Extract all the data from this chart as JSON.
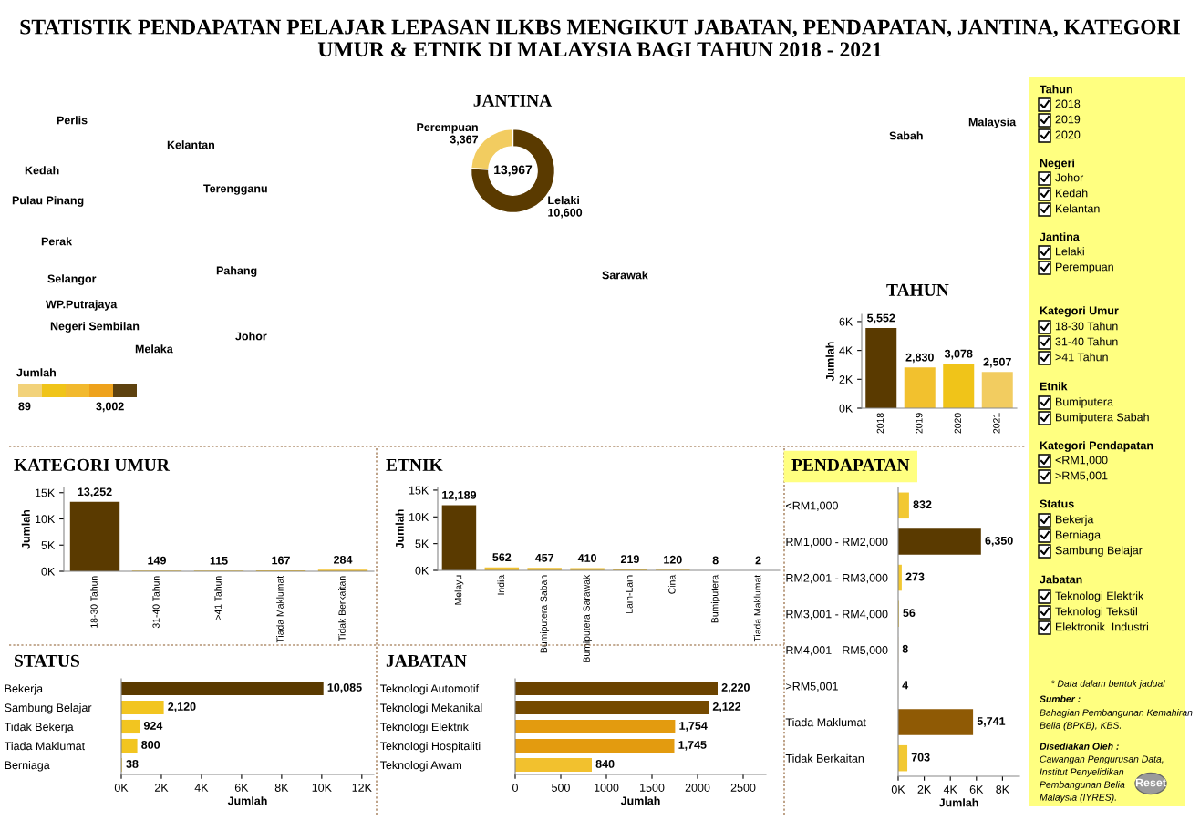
{
  "chart_data": [
    {
      "type": "other",
      "title": "STATISTIK PENDAPATAN PELAJAR LEPASAN ILKBS MENGIKUT JABATAN, PENDAPATAN, JANTINA, KATEGORI UMUR & ETNIK DI MALAYSIA BAGI TAHUN 2018 - 2021",
      "annotations": [
        "Perlis",
        "Kelantan",
        "Kedah",
        "Terengganu",
        "Pulau Pinang",
        "Perak",
        "Pahang",
        "Selangor",
        "WP.Putrajaya",
        "Negeri Sembilan",
        "Johor",
        "Melaka",
        "Sarawak",
        "Sabah",
        "Malaysia",
        "Jumlah",
        "89",
        "3,002"
      ],
      "colors": [
        "#f2d27a",
        "#f0c419",
        "#f2b92e",
        "#eea21c",
        "#5e420f"
      ]
    },
    {
      "type": "donut",
      "title": "JANTINA",
      "categories": [
        "Perempuan",
        "Lelaki"
      ],
      "values": [
        3367,
        10600
      ],
      "colors": [
        "#f2cc60",
        "#5a3a00"
      ],
      "value_labels": [
        "3,367",
        "10,600"
      ],
      "annotations": [
        "13,967"
      ]
    },
    {
      "type": "bar",
      "title": "TAHUN",
      "ylabel": "Jumlah",
      "categories": [
        "2018",
        "2019",
        "2020",
        "2021"
      ],
      "values": [
        5552,
        2830,
        3078,
        2507
      ],
      "colors": [
        "#5a3a00",
        "#f2c12e",
        "#f0c419",
        "#f2cc60"
      ],
      "value_labels": [
        "5,552",
        "2,830",
        "3,078",
        "2,507"
      ],
      "ylim": [
        0,
        6500
      ],
      "yticks": [
        {
          "value": 0,
          "label": "0K"
        },
        {
          "value": 2000,
          "label": "2K"
        },
        {
          "value": 4000,
          "label": "4K"
        },
        {
          "value": 6000,
          "label": "6K"
        }
      ]
    },
    {
      "type": "bar",
      "title": "KATEGORI UMUR",
      "ylabel": "Jumlah",
      "categories": [
        "18-30 Tahun",
        "31-40 Tahun",
        ">41 Tahun",
        "Tiada Maklumat",
        "Tidak Berkaitan"
      ],
      "values": [
        13252,
        149,
        115,
        167,
        284
      ],
      "colors": [
        "#5a3a00",
        "#f2c12e",
        "#f2c12e",
        "#f2c12e",
        "#f2c12e"
      ],
      "value_labels": [
        "13,252",
        "149",
        "115",
        "167",
        "284"
      ],
      "ylim": [
        0,
        16000
      ],
      "yticks": [
        {
          "value": 0,
          "label": "0K"
        },
        {
          "value": 5000,
          "label": "5K"
        },
        {
          "value": 10000,
          "label": "10K"
        },
        {
          "value": 15000,
          "label": "15K"
        }
      ]
    },
    {
      "type": "bar",
      "title": "ETNIK",
      "ylabel": "Jumlah",
      "categories": [
        "Melayu",
        "India",
        "Bumiputera Sabah",
        "Bumiputera Sarawak",
        "Lain-Lain",
        "Cina",
        "Bumiputera",
        "Tiada Maklumat"
      ],
      "values": [
        12189,
        562,
        457,
        410,
        219,
        120,
        8,
        2
      ],
      "colors": [
        "#5a3a00",
        "#f2c12e",
        "#f2c12e",
        "#f2c12e",
        "#f2c12e",
        "#f2c12e",
        "#f2c12e",
        "#f2c12e"
      ],
      "value_labels": [
        "12,189",
        "562",
        "457",
        "410",
        "219",
        "120",
        "8",
        "2"
      ],
      "ylim": [
        0,
        15500
      ],
      "yticks": [
        {
          "value": 0,
          "label": "0K"
        },
        {
          "value": 5000,
          "label": "5K"
        },
        {
          "value": 10000,
          "label": "10K"
        },
        {
          "value": 15000,
          "label": "15K"
        }
      ]
    },
    {
      "type": "bar",
      "orientation": "horizontal",
      "title": "STATUS",
      "xlabel": "Jumlah",
      "categories": [
        "Bekerja",
        "Sambung Belajar",
        "Tidak Bekerja",
        "Tiada Maklumat",
        "Berniaga"
      ],
      "values": [
        10085,
        2120,
        924,
        800,
        38
      ],
      "colors": [
        "#5a3a00",
        "#f2c520",
        "#f2c520",
        "#f2c520",
        "#f2c520"
      ],
      "value_labels": [
        "10,085",
        "2,120",
        "924",
        "800",
        "38"
      ],
      "xlim": [
        0,
        12600
      ],
      "xticks": [
        {
          "value": 0,
          "label": "0K"
        },
        {
          "value": 2000,
          "label": "2K"
        },
        {
          "value": 4000,
          "label": "4K"
        },
        {
          "value": 6000,
          "label": "6K"
        },
        {
          "value": 8000,
          "label": "8K"
        },
        {
          "value": 10000,
          "label": "10K"
        },
        {
          "value": 12000,
          "label": "12K"
        }
      ]
    },
    {
      "type": "bar",
      "orientation": "horizontal",
      "title": "JABATAN",
      "xlabel": "Jumlah",
      "categories": [
        "Teknologi Automotif",
        "Teknologi Mekanikal",
        "Teknologi Elektrik",
        "Teknologi Hospitaliti",
        "Teknologi Awam"
      ],
      "values": [
        2220,
        2122,
        1754,
        1745,
        840
      ],
      "colors": [
        "#6b4300",
        "#754a00",
        "#e39b0f",
        "#e39b0f",
        "#f2c12e"
      ],
      "value_labels": [
        "2,220",
        "2,122",
        "1,754",
        "1,745",
        "840"
      ],
      "xlim": [
        0,
        2750
      ],
      "xticks": [
        0,
        500,
        1000,
        1500,
        2000,
        2500
      ]
    },
    {
      "type": "bar",
      "orientation": "horizontal",
      "title": "PENDAPATAN",
      "xlabel": "Jumlah",
      "categories": [
        "<RM1,000",
        "RM1,000 - RM2,000",
        "RM2,001 - RM3,000",
        "RM3,001 - RM4,000",
        "RM4,001 - RM5,000",
        ">RM5,001",
        "Tiada Maklumat",
        "Tidak Berkaitan"
      ],
      "values": [
        832,
        6350,
        273,
        56,
        8,
        4,
        5741,
        703
      ],
      "colors": [
        "#f2c832",
        "#5a3a00",
        "#f2c832",
        "#f2c832",
        "#f2c832",
        "#f2c832",
        "#8f5a05",
        "#f2c832"
      ],
      "value_labels": [
        "832",
        "6,350",
        "273",
        "56",
        "8",
        "4",
        "5,741",
        "703"
      ],
      "xlim": [
        0,
        9300
      ],
      "xticks": [
        {
          "value": 0,
          "label": "0K"
        },
        {
          "value": 2000,
          "label": "2K"
        },
        {
          "value": 4000,
          "label": "4K"
        },
        {
          "value": 6000,
          "label": "6K"
        },
        {
          "value": 8000,
          "label": "8K"
        }
      ]
    },
    {
      "type": "other",
      "annotations": [
        "Tahun",
        "2018",
        "2019",
        "2020",
        "Negeri",
        "Johor",
        "Kedah",
        "Kelantan",
        "Jantina",
        "Lelaki",
        "Perempuan",
        "Kategori Umur",
        "18-30 Tahun",
        "31-40 Tahun",
        ">41 Tahun",
        "Etnik",
        "Bumiputera",
        "Bumiputera Sabah",
        "Kategori Pendapatan",
        "<RM1,000",
        ">RM5,001",
        "Status",
        "Bekerja",
        "Berniaga",
        "Sambung Belajar",
        "Jabatan",
        "Teknologi Elektrik",
        "Teknologi Tekstil",
        "Elektronik  Industri",
        "* Data dalam bentuk jadual",
        "Sumber :",
        "Bahagian Pembangunan Kemahiran",
        "Belia (BPKB), KBS.",
        "Disediakan Oleh :",
        "Cawangan Pengurusan Data,",
        "Institut Penyelidikan",
        "Pembangunan Belia",
        "Malaysia (IYRES).",
        "Reset"
      ],
      "color": "#ffff80"
    }
  ]
}
